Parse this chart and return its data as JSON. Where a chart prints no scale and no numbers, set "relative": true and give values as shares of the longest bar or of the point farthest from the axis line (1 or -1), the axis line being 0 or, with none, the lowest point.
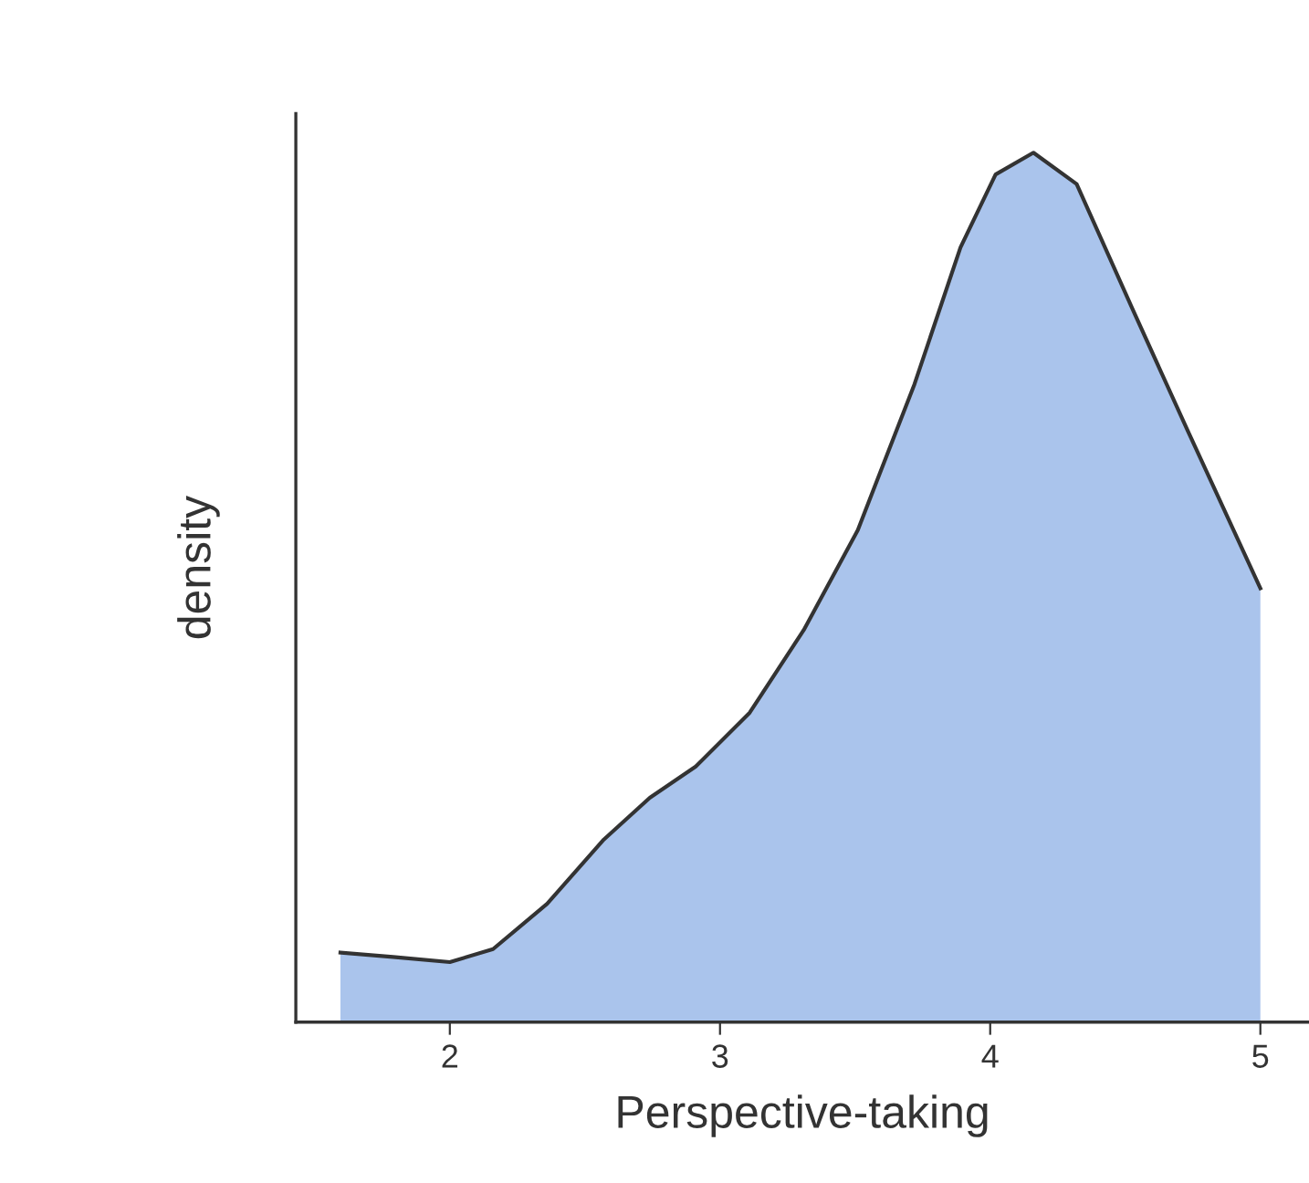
{
  "chart_data": {
    "type": "area",
    "relative": true,
    "xlabel": "Perspective-taking",
    "ylabel": "density",
    "xlim": [
      1.43,
      5.18
    ],
    "xticks": [
      2,
      3,
      4,
      5
    ],
    "grid": false,
    "legend": false,
    "series": [
      {
        "color": "#aac4ec",
        "x": [
          1.595,
          1.79,
          2.0,
          2.16,
          2.36,
          2.57,
          2.74,
          2.91,
          3.11,
          3.31,
          3.51,
          3.72,
          3.89,
          4.02,
          4.16,
          4.32,
          4.53,
          4.73,
          5.0
        ],
        "values": [
          0.08,
          0.075,
          0.069,
          0.084,
          0.136,
          0.21,
          0.258,
          0.294,
          0.356,
          0.451,
          0.566,
          0.734,
          0.891,
          0.975,
          1,
          0.964,
          0.818,
          0.681,
          0.499
        ]
      }
    ]
  }
}
